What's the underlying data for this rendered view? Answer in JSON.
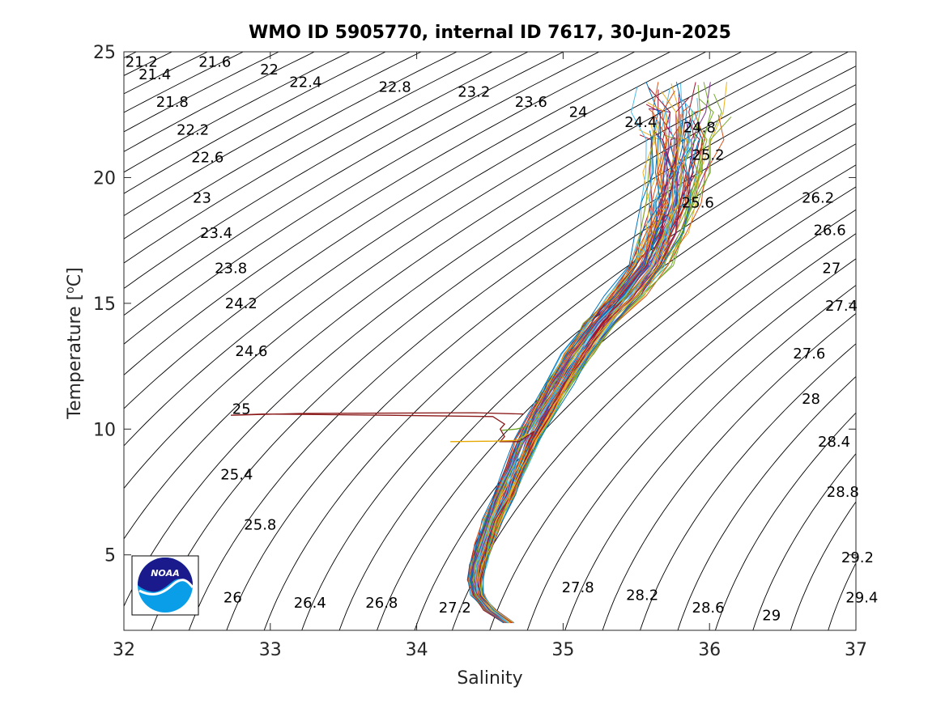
{
  "chart_data": {
    "type": "line",
    "title": "WMO ID 5905770, internal ID 7617, 30-Jun-2025",
    "xlabel": "Salinity",
    "ylabel_text": "Temperature [",
    "ylabel_sup": "o",
    "ylabel_unit": "C]",
    "xlim": [
      32,
      37
    ],
    "ylim": [
      2,
      25
    ],
    "xticks": [
      "32",
      "33",
      "34",
      "35",
      "36",
      "37"
    ],
    "yticks": [
      "5",
      "10",
      "15",
      "20",
      "25"
    ],
    "grid": false,
    "legend": "none",
    "isopycnal_contours": {
      "interval": 0.2,
      "range": [
        21.2,
        29.4
      ],
      "labels": [
        {
          "text": "21.2",
          "s": 32.01,
          "t": 24.6
        },
        {
          "text": "21.4",
          "s": 32.1,
          "t": 24.1
        },
        {
          "text": "21.6",
          "s": 32.51,
          "t": 24.6
        },
        {
          "text": "21.8",
          "s": 32.22,
          "t": 23.0
        },
        {
          "text": "22",
          "s": 32.93,
          "t": 24.3
        },
        {
          "text": "22.2",
          "s": 32.36,
          "t": 21.9
        },
        {
          "text": "22.4",
          "s": 33.13,
          "t": 23.8
        },
        {
          "text": "22.8",
          "s": 33.74,
          "t": 23.6
        },
        {
          "text": "22.6",
          "s": 32.46,
          "t": 20.8
        },
        {
          "text": "23.2",
          "s": 34.28,
          "t": 23.4
        },
        {
          "text": "23.6",
          "s": 34.67,
          "t": 23.0
        },
        {
          "text": "24",
          "s": 35.04,
          "t": 22.6
        },
        {
          "text": "23",
          "s": 32.47,
          "t": 19.2
        },
        {
          "text": "24.4",
          "s": 35.42,
          "t": 22.2
        },
        {
          "text": "24.8",
          "s": 35.82,
          "t": 22.0
        },
        {
          "text": "23.4",
          "s": 32.52,
          "t": 17.8
        },
        {
          "text": "25.2",
          "s": 35.88,
          "t": 20.9
        },
        {
          "text": "25.6",
          "s": 35.81,
          "t": 19.0
        },
        {
          "text": "23.8",
          "s": 32.62,
          "t": 16.4
        },
        {
          "text": "26.2",
          "s": 36.63,
          "t": 19.2
        },
        {
          "text": "26.6",
          "s": 36.71,
          "t": 17.9
        },
        {
          "text": "24.2",
          "s": 32.69,
          "t": 15.0
        },
        {
          "text": "27",
          "s": 36.77,
          "t": 16.4
        },
        {
          "text": "24.6",
          "s": 32.76,
          "t": 13.1
        },
        {
          "text": "27.4",
          "s": 36.79,
          "t": 14.9
        },
        {
          "text": "27.6",
          "s": 36.57,
          "t": 13.0
        },
        {
          "text": "25",
          "s": 32.74,
          "t": 10.8
        },
        {
          "text": "28",
          "s": 36.63,
          "t": 11.2
        },
        {
          "text": "28.4",
          "s": 36.74,
          "t": 9.5
        },
        {
          "text": "25.4",
          "s": 32.66,
          "t": 8.2
        },
        {
          "text": "28.8",
          "s": 36.8,
          "t": 7.5
        },
        {
          "text": "25.8",
          "s": 32.82,
          "t": 6.2
        },
        {
          "text": "29.2",
          "s": 36.9,
          "t": 4.9
        },
        {
          "text": "27.8",
          "s": 34.99,
          "t": 3.7
        },
        {
          "text": "28.2",
          "s": 35.43,
          "t": 3.4
        },
        {
          "text": "26",
          "s": 32.68,
          "t": 3.3
        },
        {
          "text": "26.4",
          "s": 33.16,
          "t": 3.1
        },
        {
          "text": "26.8",
          "s": 33.65,
          "t": 3.1
        },
        {
          "text": "27.2",
          "s": 34.15,
          "t": 2.9
        },
        {
          "text": "28.6",
          "s": 35.88,
          "t": 2.9
        },
        {
          "text": "29",
          "s": 36.36,
          "t": 2.6
        },
        {
          "text": "29.4",
          "s": 36.93,
          "t": 3.3
        }
      ]
    },
    "profile_envelope": {
      "description_values": "T-S profile bundle",
      "spine": [
        [
          34.63,
          2.3
        ],
        [
          34.5,
          2.8
        ],
        [
          34.42,
          3.4
        ],
        [
          34.4,
          4.0
        ],
        [
          34.42,
          4.6
        ],
        [
          34.46,
          5.4
        ],
        [
          34.52,
          6.4
        ],
        [
          34.6,
          7.4
        ],
        [
          34.68,
          8.5
        ],
        [
          34.76,
          9.6
        ],
        [
          34.86,
          10.7
        ],
        [
          34.97,
          11.8
        ],
        [
          35.1,
          13.0
        ],
        [
          35.25,
          14.2
        ],
        [
          35.42,
          15.3
        ],
        [
          35.58,
          16.5
        ],
        [
          35.68,
          17.8
        ],
        [
          35.74,
          19.0
        ],
        [
          35.78,
          20.2
        ],
        [
          35.8,
          21.5
        ],
        [
          35.8,
          22.6
        ],
        [
          35.78,
          23.8
        ]
      ],
      "count": 80
    },
    "series": [
      {
        "color": "#8b1a1a",
        "points": [
          [
            34.73,
            10.6
          ],
          [
            34.4,
            10.65
          ],
          [
            33.2,
            10.62
          ],
          [
            32.73,
            10.55
          ],
          [
            32.95,
            10.6
          ],
          [
            33.8,
            10.55
          ],
          [
            34.52,
            10.5
          ],
          [
            34.6,
            10.2
          ],
          [
            34.57,
            10.0
          ],
          [
            34.6,
            9.7
          ],
          [
            34.57,
            9.5
          ],
          [
            34.7,
            9.5
          ],
          [
            34.8,
            9.9
          ]
        ]
      },
      {
        "color": "#e6a800",
        "points": [
          [
            34.23,
            9.5
          ],
          [
            34.53,
            9.52
          ],
          [
            34.68,
            9.55
          ],
          [
            34.76,
            9.8
          ]
        ]
      },
      {
        "color": "#66a61e",
        "points": [
          [
            34.58,
            9.95
          ],
          [
            34.68,
            10.0
          ],
          [
            34.75,
            10.1
          ]
        ]
      }
    ],
    "colors": [
      "#0072bd",
      "#d95319",
      "#edb120",
      "#7e2f8e",
      "#77ac30",
      "#4dbeee",
      "#a2142f"
    ],
    "logo": {
      "name": "NOAA",
      "text": "NOAA",
      "navy": "#1a1a8c",
      "sky": "#0a9ee8"
    }
  }
}
